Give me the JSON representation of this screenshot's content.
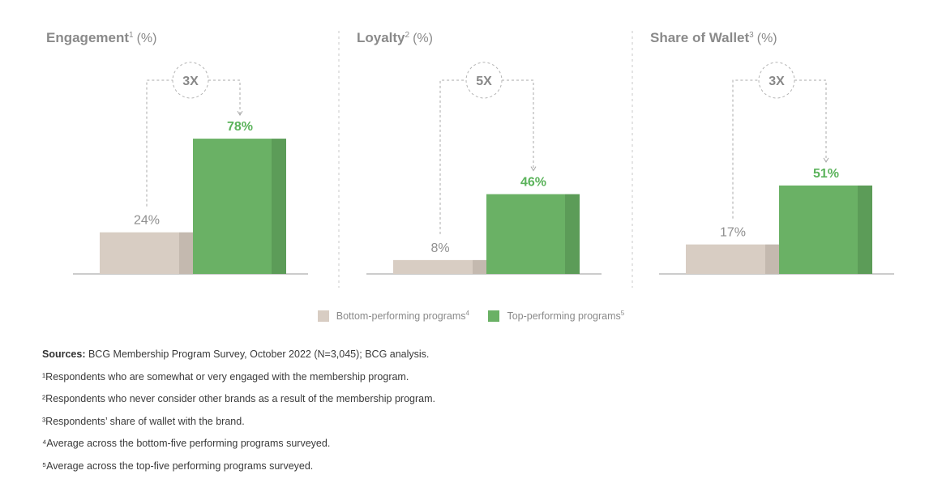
{
  "chart_data": {
    "type": "bar",
    "panels": [
      {
        "title": "Engagement",
        "title_sup": "1",
        "unit": "(%)",
        "multiplier": "3X",
        "bottom": {
          "value": 24,
          "label": "24%"
        },
        "top": {
          "value": 78,
          "label": "78%"
        }
      },
      {
        "title": "Loyalty",
        "title_sup": "2",
        "unit": "(%)",
        "multiplier": "5X",
        "bottom": {
          "value": 8,
          "label": "8%"
        },
        "top": {
          "value": 46,
          "label": "46%"
        }
      },
      {
        "title": "Share of Wallet",
        "title_sup": "3",
        "unit": "(%)",
        "multiplier": "3X",
        "bottom": {
          "value": 17,
          "label": "17%"
        },
        "top": {
          "value": 51,
          "label": "51%"
        }
      }
    ],
    "legend": [
      {
        "name": "Bottom-performing programs",
        "sup": "4",
        "color": "#d8cdc3"
      },
      {
        "name": "Top-performing programs",
        "sup": "5",
        "color": "#6ab165"
      }
    ]
  },
  "colors": {
    "bottom": "#d8cdc3",
    "bottom_side": "#c4b9af",
    "top": "#6ab165",
    "top_side": "#5c9c58",
    "top_label": "#5bb35b"
  },
  "notes": {
    "sources_label": "Sources:",
    "sources_text": " BCG Membership Program Survey, October 2022 (N=3,045); BCG analysis.",
    "footnotes": [
      "¹Respondents who are somewhat or very engaged with the membership program.",
      "²Respondents who never consider other brands as a result of the membership program.",
      "³Respondents’ share of wallet with the brand.",
      "⁴Average across the bottom-five performing programs surveyed.",
      "⁵Average across the top-five performing programs surveyed."
    ]
  }
}
